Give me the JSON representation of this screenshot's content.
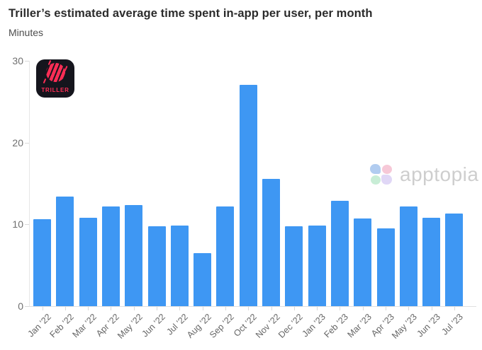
{
  "header": {
    "title": "Triller’s estimated average time spent in-app per user, per month",
    "subtitle": "Minutes"
  },
  "branding": {
    "triller_logo_label": "TRILLER",
    "watermark_label": "apptopia"
  },
  "colors": {
    "bar": "#3e97f3",
    "triller_pink": "#ff2d55",
    "triller_bg": "#15151d",
    "axis_line": "#e3e3e3",
    "tick_label_gray": "#6f6f6f",
    "x_label_gray": "#666666",
    "watermark_text": "#c9c9c9",
    "clover_blue": "#a9c7ef",
    "clover_pink": "#f6c3d3",
    "clover_green": "#c3ecd2",
    "clover_purple": "#ddd3f6"
  },
  "chart_data": {
    "type": "bar",
    "title": "Triller’s estimated average time spent in-app per user, per month",
    "ylabel": "Minutes",
    "xlabel": "",
    "categories": [
      "Jan ’22",
      "Feb ’22",
      "Mar ’22",
      "Apr ’22",
      "May ’22",
      "Jun ’22",
      "Jul ’22",
      "Aug ’22",
      "Sep ’22",
      "Oct ’22",
      "Nov ’22",
      "Dec ’22",
      "Jan ’23",
      "Feb ’23",
      "Mar ’23",
      "Apr ’23",
      "May ’23",
      "Jun ’23",
      "Jul ’23"
    ],
    "values": [
      10.6,
      13.4,
      10.8,
      12.2,
      12.4,
      9.8,
      9.9,
      6.5,
      12.2,
      27.1,
      15.6,
      9.8,
      9.9,
      12.9,
      10.7,
      9.5,
      12.2,
      10.8,
      11.3
    ],
    "ylim": [
      0,
      30
    ],
    "yticks": [
      0,
      10,
      20,
      30
    ],
    "grid": false,
    "legend": null,
    "bar_color": "#3e97f3"
  }
}
